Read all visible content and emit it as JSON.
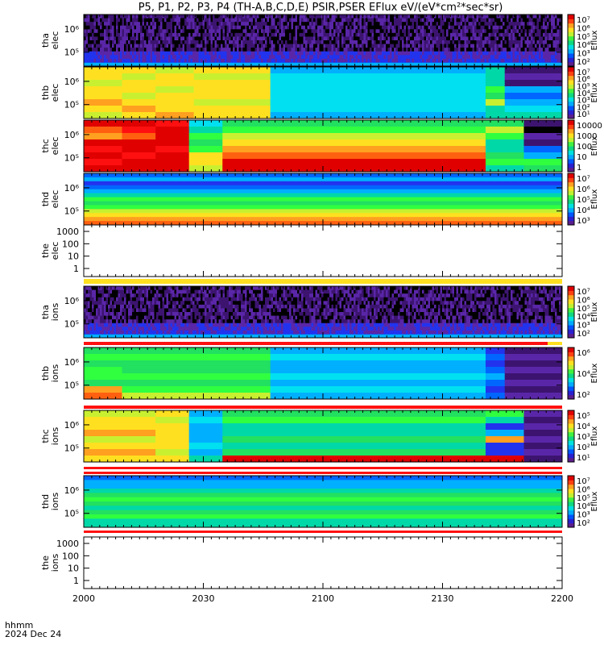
{
  "title": "P5, P1, P2, P3, P4 (TH-A,B,C,D,E) PSIR,PSER EFlux eV/(eV*cm²*sec*sr)",
  "footer": {
    "hhmm": "hhmm",
    "date": "2024 Dec 24"
  },
  "chart_data": {
    "type": "heatmap",
    "x_axis": {
      "ticks": [
        "2000",
        "2030",
        "2100",
        "2130",
        "2200"
      ]
    },
    "panels": [
      {
        "label": [
          "tha",
          "elec"
        ],
        "yticks": [
          "10⁶",
          "10⁵"
        ],
        "colorbar": {
          "label": "Eflux",
          "ticks": [
            "10⁷",
            "10⁶",
            "10⁵",
            "10⁴",
            "10³",
            "10²"
          ]
        },
        "kind": "noisy_purple"
      },
      {
        "label": [
          "thb",
          "elec"
        ],
        "yticks": [
          "10⁶",
          "10⁵"
        ],
        "colorbar": {
          "label": "Eflux",
          "ticks": [
            "10⁷",
            "10⁶",
            "10⁵",
            "10⁴",
            "10³",
            "10²",
            "10¹"
          ]
        },
        "kind": "thb_elec"
      },
      {
        "label": [
          "thc",
          "elec"
        ],
        "yticks": [
          "10⁶",
          "10⁵"
        ],
        "colorbar": {
          "label": "Eflux",
          "ticks": [
            "10000",
            "1000",
            "100",
            "10",
            "1"
          ]
        },
        "kind": "thc_elec"
      },
      {
        "label": [
          "thd",
          "elec"
        ],
        "yticks": [
          "10⁶",
          "10⁵"
        ],
        "colorbar": {
          "label": "Eflux",
          "ticks": [
            "10⁷",
            "10⁶",
            "10⁵",
            "10⁴",
            "10³"
          ]
        },
        "kind": "thd_elec"
      },
      {
        "label": [
          "the",
          "elec"
        ],
        "yticks": [
          "1000",
          "100",
          "10",
          "1"
        ],
        "colorbar": null,
        "kind": "empty_yellow"
      },
      {
        "label": [
          "tha",
          "ions"
        ],
        "yticks": [
          "10⁶",
          "10⁵"
        ],
        "colorbar": {
          "label": "Eflux",
          "ticks": [
            "10⁷",
            "10⁶",
            "10⁵",
            "10⁴",
            "10³",
            "10²"
          ]
        },
        "kind": "noisy_purple_ions"
      },
      {
        "label": [
          "thb",
          "ions"
        ],
        "yticks": [
          "10⁶",
          "10⁵"
        ],
        "colorbar": {
          "label": "Eflux",
          "ticks": [
            "10⁶",
            "10⁴",
            "10²"
          ]
        },
        "kind": "thb_ions"
      },
      {
        "label": [
          "thc",
          "ions"
        ],
        "yticks": [
          "10⁶",
          "10⁵"
        ],
        "colorbar": {
          "label": "Eflux",
          "ticks": [
            "10⁵",
            "10⁴",
            "10³",
            "10²",
            "10¹"
          ]
        },
        "kind": "thc_ions"
      },
      {
        "label": [
          "thd",
          "ions"
        ],
        "yticks": [
          "10⁶",
          "10⁵"
        ],
        "colorbar": {
          "label": "Eflux",
          "ticks": [
            "10⁷",
            "10⁶",
            "10⁵",
            "10⁴",
            "10³",
            "10²"
          ]
        },
        "kind": "thd_ions"
      },
      {
        "label": [
          "the",
          "ions"
        ],
        "yticks": [
          "1000",
          "100",
          "10",
          "1"
        ],
        "colorbar": null,
        "kind": "empty"
      }
    ]
  }
}
